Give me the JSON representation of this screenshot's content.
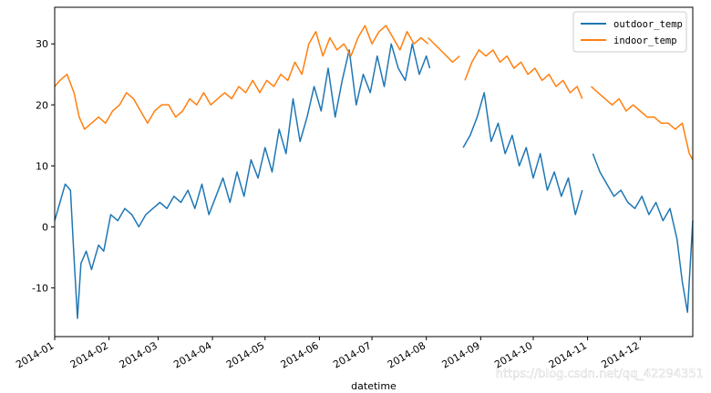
{
  "chart_data": {
    "type": "line",
    "xlabel": "datetime",
    "ylabel": "",
    "x_range": [
      "2014-01-01",
      "2014-12-31"
    ],
    "ylim": [
      -18,
      36
    ],
    "y_ticks": [
      -10,
      0,
      10,
      20,
      30
    ],
    "x_tick_dates": [
      "2014-01-01",
      "2014-02-01",
      "2014-03-01",
      "2014-04-01",
      "2014-05-01",
      "2014-06-01",
      "2014-07-01",
      "2014-08-01",
      "2014-09-01",
      "2014-10-01",
      "2014-11-01",
      "2014-12-01"
    ],
    "x_tick_labels": [
      "2014-01",
      "2014-02",
      "2014-03",
      "2014-04",
      "2014-05",
      "2014-06",
      "2014-07",
      "2014-08",
      "2014-09",
      "2014-10",
      "2014-11",
      "2014-12"
    ],
    "grid": false,
    "legend_position": "top-right",
    "series": [
      {
        "name": "outdoor_temp",
        "color": "#1f77b4",
        "segments": [
          {
            "x": [
              "2014-01-01",
              "2014-01-04",
              "2014-01-07",
              "2014-01-10",
              "2014-01-12",
              "2014-01-14",
              "2014-01-16",
              "2014-01-19",
              "2014-01-22",
              "2014-01-26",
              "2014-01-29",
              "2014-02-02",
              "2014-02-06",
              "2014-02-10",
              "2014-02-14",
              "2014-02-18",
              "2014-02-22",
              "2014-02-26",
              "2014-03-02",
              "2014-03-06",
              "2014-03-10",
              "2014-03-14",
              "2014-03-18",
              "2014-03-22",
              "2014-03-26",
              "2014-03-30",
              "2014-04-03",
              "2014-04-07",
              "2014-04-11",
              "2014-04-15",
              "2014-04-19",
              "2014-04-23",
              "2014-04-27",
              "2014-05-01",
              "2014-05-05",
              "2014-05-09",
              "2014-05-13",
              "2014-05-17",
              "2014-05-21",
              "2014-05-25",
              "2014-05-29",
              "2014-06-02",
              "2014-06-06",
              "2014-06-10",
              "2014-06-14",
              "2014-06-18",
              "2014-06-22",
              "2014-06-26",
              "2014-06-30",
              "2014-07-04",
              "2014-07-08",
              "2014-07-12",
              "2014-07-16",
              "2014-07-20",
              "2014-07-24",
              "2014-07-28",
              "2014-08-01",
              "2014-08-03"
            ],
            "y": [
              1,
              4,
              7,
              6,
              -5,
              -15,
              -6,
              -4,
              -7,
              -3,
              -4,
              2,
              1,
              3,
              2,
              0,
              2,
              3,
              4,
              3,
              5,
              4,
              6,
              3,
              7,
              2,
              5,
              8,
              4,
              9,
              5,
              11,
              8,
              13,
              9,
              16,
              12,
              21,
              14,
              18,
              23,
              19,
              26,
              18,
              24,
              29,
              20,
              25,
              22,
              28,
              23,
              30,
              26,
              24,
              30,
              25,
              28,
              26
            ]
          },
          {
            "x": [
              "2014-08-22",
              "2014-08-26",
              "2014-08-30",
              "2014-09-03",
              "2014-09-07",
              "2014-09-11",
              "2014-09-15",
              "2014-09-19",
              "2014-09-23",
              "2014-09-27",
              "2014-10-01",
              "2014-10-05",
              "2014-10-09",
              "2014-10-13",
              "2014-10-17",
              "2014-10-21",
              "2014-10-25",
              "2014-10-29"
            ],
            "y": [
              13,
              15,
              18,
              22,
              14,
              17,
              12,
              15,
              10,
              13,
              8,
              12,
              6,
              9,
              5,
              8,
              2,
              6
            ]
          },
          {
            "x": [
              "2014-11-04",
              "2014-11-08",
              "2014-11-12",
              "2014-11-16",
              "2014-11-20",
              "2014-11-24",
              "2014-11-28",
              "2014-12-02",
              "2014-12-06",
              "2014-12-10",
              "2014-12-14",
              "2014-12-18",
              "2014-12-22",
              "2014-12-25",
              "2014-12-28",
              "2014-12-31"
            ],
            "y": [
              12,
              9,
              7,
              5,
              6,
              4,
              3,
              5,
              2,
              4,
              1,
              3,
              -2,
              -9,
              -14,
              1
            ]
          }
        ]
      },
      {
        "name": "indoor_temp",
        "color": "#ff7f0e",
        "segments": [
          {
            "x": [
              "2014-01-01",
              "2014-01-04",
              "2014-01-08",
              "2014-01-12",
              "2014-01-15",
              "2014-01-18",
              "2014-01-22",
              "2014-01-26",
              "2014-01-30",
              "2014-02-03",
              "2014-02-07",
              "2014-02-11",
              "2014-02-15",
              "2014-02-19",
              "2014-02-23",
              "2014-02-27",
              "2014-03-03",
              "2014-03-07",
              "2014-03-11",
              "2014-03-15",
              "2014-03-19",
              "2014-03-23",
              "2014-03-27",
              "2014-03-31",
              "2014-04-04",
              "2014-04-08",
              "2014-04-12",
              "2014-04-16",
              "2014-04-20",
              "2014-04-24",
              "2014-04-28",
              "2014-05-02",
              "2014-05-06",
              "2014-05-10",
              "2014-05-14",
              "2014-05-18",
              "2014-05-22",
              "2014-05-26",
              "2014-05-30",
              "2014-06-03",
              "2014-06-07",
              "2014-06-11",
              "2014-06-15",
              "2014-06-19",
              "2014-06-23",
              "2014-06-27",
              "2014-07-01",
              "2014-07-05",
              "2014-07-09",
              "2014-07-13",
              "2014-07-17",
              "2014-07-21",
              "2014-07-25",
              "2014-07-29",
              "2014-08-02"
            ],
            "y": [
              23,
              24,
              25,
              22,
              18,
              16,
              17,
              18,
              17,
              19,
              20,
              22,
              21,
              19,
              17,
              19,
              20,
              20,
              18,
              19,
              21,
              20,
              22,
              20,
              21,
              22,
              21,
              23,
              22,
              24,
              22,
              24,
              23,
              25,
              24,
              27,
              25,
              30,
              32,
              28,
              31,
              29,
              30,
              28,
              31,
              33,
              30,
              32,
              33,
              31,
              29,
              32,
              30,
              31,
              30
            ]
          },
          {
            "x": [
              "2014-08-02",
              "2014-08-09",
              "2014-08-16",
              "2014-08-20"
            ],
            "y": [
              31,
              29,
              27,
              28
            ]
          },
          {
            "x": [
              "2014-08-23",
              "2014-08-27",
              "2014-08-31",
              "2014-09-04",
              "2014-09-08",
              "2014-09-12",
              "2014-09-16",
              "2014-09-20",
              "2014-09-24",
              "2014-09-28",
              "2014-10-02",
              "2014-10-06",
              "2014-10-10",
              "2014-10-14",
              "2014-10-18",
              "2014-10-22",
              "2014-10-26",
              "2014-10-29"
            ],
            "y": [
              24,
              27,
              29,
              28,
              29,
              27,
              28,
              26,
              27,
              25,
              26,
              24,
              25,
              23,
              24,
              22,
              23,
              21
            ]
          },
          {
            "x": [
              "2014-11-03",
              "2014-11-07",
              "2014-11-11",
              "2014-11-15",
              "2014-11-19",
              "2014-11-23",
              "2014-11-27",
              "2014-12-01",
              "2014-12-05",
              "2014-12-09",
              "2014-12-13",
              "2014-12-17",
              "2014-12-21",
              "2014-12-25",
              "2014-12-29",
              "2014-12-31"
            ],
            "y": [
              23,
              22,
              21,
              20,
              21,
              19,
              20,
              19,
              18,
              18,
              17,
              17,
              16,
              17,
              12,
              11
            ]
          }
        ]
      }
    ]
  },
  "watermark": "https://blog.csdn.net/qq_42294351"
}
